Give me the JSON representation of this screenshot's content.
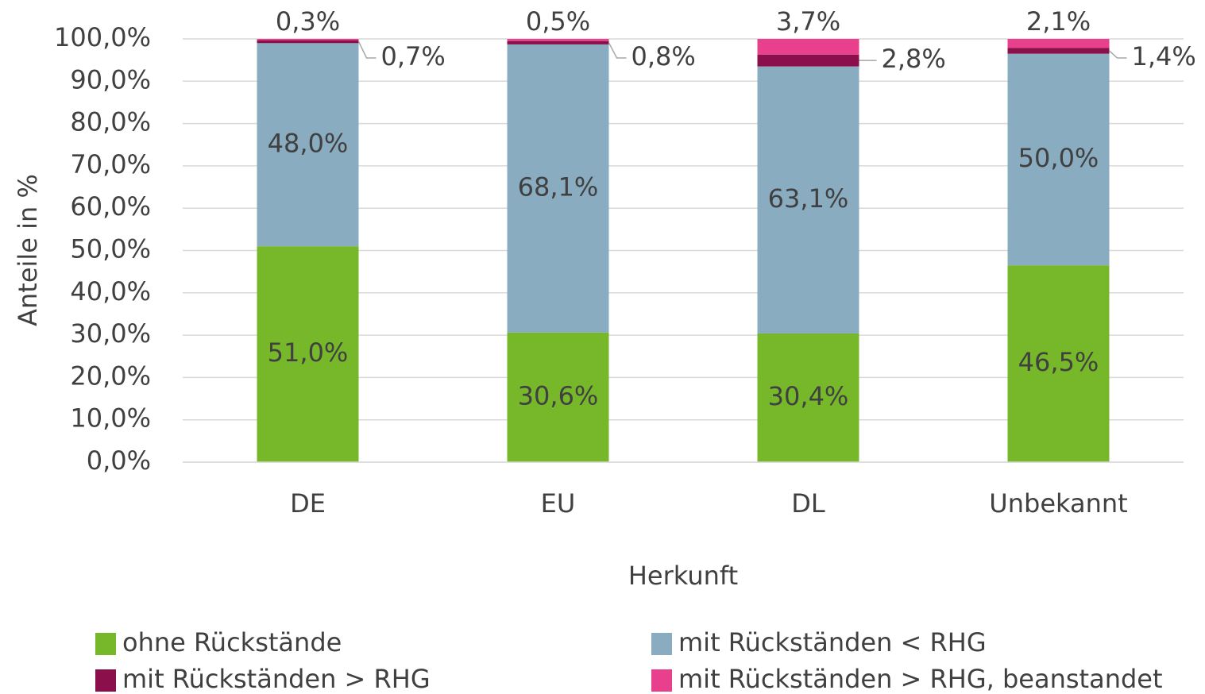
{
  "chart_data": {
    "type": "bar",
    "stacked": true,
    "xlabel": "Herkunft",
    "ylabel": "Anteile in %",
    "categories": [
      "DE",
      "EU",
      "DL",
      "Unbekannt"
    ],
    "series": [
      {
        "name": "ohne Rückstände",
        "color": "#76b82a",
        "values": [
          51.0,
          30.6,
          30.4,
          46.5
        ],
        "value_labels": [
          "51,0%",
          "30,6%",
          "30,4%",
          "46,5%"
        ]
      },
      {
        "name": "mit Rückständen < RHG",
        "color": "#8aacc0",
        "values": [
          48.0,
          68.1,
          63.1,
          50.0
        ],
        "value_labels": [
          "48,0%",
          "68,1%",
          "63,1%",
          "50,0%"
        ]
      },
      {
        "name": "mit Rückständen > RHG",
        "color": "#8b0f4a",
        "values": [
          0.7,
          0.8,
          2.8,
          1.4
        ],
        "value_labels": [
          "0,7%",
          "0,8%",
          "2,8%",
          "1,4%"
        ]
      },
      {
        "name": "mit Rückständen > RHG, beanstandet",
        "color": "#e8408d",
        "values": [
          0.3,
          0.5,
          3.7,
          2.1
        ],
        "value_labels": [
          "0,3%",
          "0,5%",
          "3,7%",
          "2,1%"
        ]
      }
    ],
    "ylim": [
      0,
      100
    ],
    "yticks": [
      {
        "value": 0,
        "label": "0,0%"
      },
      {
        "value": 10,
        "label": "10,0%"
      },
      {
        "value": 20,
        "label": "20,0%"
      },
      {
        "value": 30,
        "label": "30,0%"
      },
      {
        "value": 40,
        "label": "40,0%"
      },
      {
        "value": 50,
        "label": "50,0%"
      },
      {
        "value": 60,
        "label": "60,0%"
      },
      {
        "value": 70,
        "label": "70,0%"
      },
      {
        "value": 80,
        "label": "80,0%"
      },
      {
        "value": 90,
        "label": "90,0%"
      },
      {
        "value": 100,
        "label": "100,0%"
      }
    ],
    "grid": true,
    "legend": "bottom"
  }
}
